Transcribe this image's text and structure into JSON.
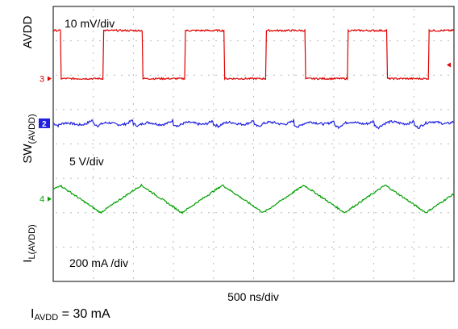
{
  "chart_data": {
    "type": "line",
    "title": "",
    "time_base": "500 ns/div",
    "divisions": {
      "x": 10,
      "y": 8
    },
    "grid": true,
    "series": [
      {
        "name": "AVDD",
        "channel": "2",
        "scale": "10 mV/div",
        "color": "#2020e0",
        "waveform": "ripple",
        "period_div": 1.0,
        "amplitude_div": 0.25,
        "offset_div": 0.6
      },
      {
        "name": "SW(AVDD)",
        "name_main": "SW",
        "name_sub": "(AVDD)",
        "channel": "3",
        "scale": "5 V/div",
        "color": "#e00000",
        "waveform": "square",
        "period_div": 2.03,
        "duty": 0.48,
        "high_div": 3.3,
        "low_div": 1.9
      },
      {
        "name": "IL(AVDD)",
        "name_main": "I",
        "name_sub": "L(AVDD)",
        "channel": "4",
        "scale": "200 mA /div",
        "color": "#00a000",
        "waveform": "triangle",
        "period_div": 2.03,
        "peak_div": -1.2,
        "valley_div": -2.0
      }
    ]
  },
  "conditions": {
    "label_main": "I",
    "label_sub": "AVDD",
    "value": " = 30 mA"
  }
}
